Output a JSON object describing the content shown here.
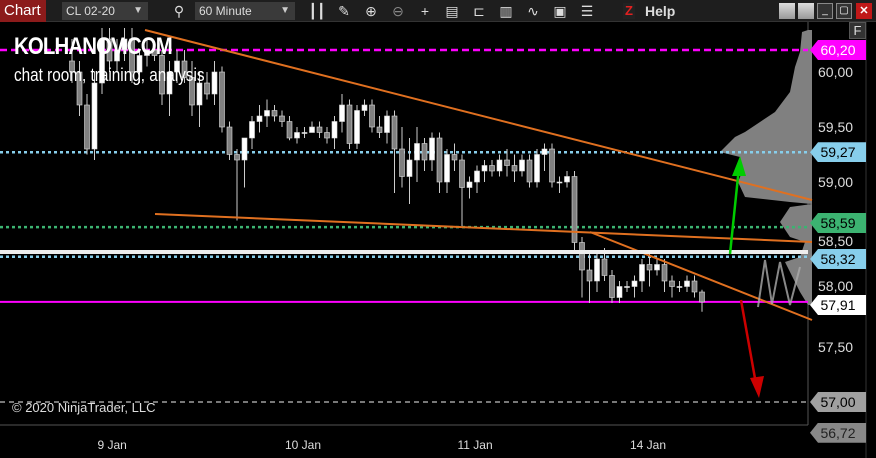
{
  "toolbar": {
    "chart_tab": "Chart",
    "instrument": "CL 02-20",
    "timeframe": "60 Minute",
    "icons": [
      "search-icon",
      "bar-type-icon",
      "draw-pencil-icon",
      "zoom-in-icon",
      "zoom-out-icon",
      "crosshair-icon",
      "data-box-icon",
      "chart-trader-icon",
      "templates-icon",
      "strategies-icon",
      "properties-icon",
      "indicators-list-icon"
    ],
    "z_label": "Z",
    "help": "Help"
  },
  "watermark": {
    "title": "KOLHANOV.COM",
    "subtitle": "chat room, training, analysis"
  },
  "copyright": "© 2020 NinjaTrader, LLC",
  "f_button": "F",
  "chart_data": {
    "type": "candlestick",
    "instrument": "CL 02-20",
    "interval": "60 Minute",
    "ylim": [
      56.72,
      60.4
    ],
    "y_ticks": [
      "60,00",
      "59,50",
      "59,00",
      "58,50",
      "58,00",
      "57,50"
    ],
    "y_tick_values": [
      60.0,
      59.5,
      59.0,
      58.5,
      58.0,
      57.5
    ],
    "x_tick_labels": [
      "9 Jan",
      "10 Jan",
      "11 Jan",
      "14 Jan"
    ],
    "x_tick_index": [
      5,
      30,
      53,
      76
    ],
    "ohlc": [
      [
        60.1,
        60.3,
        59.9,
        60.0
      ],
      [
        60.0,
        60.1,
        59.6,
        59.7
      ],
      [
        59.7,
        59.8,
        59.25,
        59.3
      ],
      [
        59.3,
        60.0,
        59.2,
        59.9
      ],
      [
        59.9,
        60.4,
        59.8,
        60.3
      ],
      [
        60.3,
        60.4,
        60.0,
        60.1
      ],
      [
        60.1,
        60.3,
        60.0,
        60.2
      ],
      [
        60.2,
        60.4,
        60.1,
        60.3
      ],
      [
        60.3,
        60.4,
        59.9,
        60.0
      ],
      [
        60.0,
        60.2,
        59.9,
        60.15
      ],
      [
        60.15,
        60.3,
        60.05,
        60.2
      ],
      [
        60.2,
        60.25,
        60.1,
        60.15
      ],
      [
        60.15,
        60.2,
        59.7,
        59.8
      ],
      [
        59.8,
        60.1,
        59.6,
        60.0
      ],
      [
        60.0,
        60.2,
        59.9,
        60.1
      ],
      [
        60.1,
        60.2,
        59.9,
        59.95
      ],
      [
        59.95,
        60.1,
        59.6,
        59.7
      ],
      [
        59.7,
        60.0,
        59.5,
        59.9
      ],
      [
        59.9,
        60.0,
        59.75,
        59.8
      ],
      [
        59.8,
        60.1,
        59.7,
        60.0
      ],
      [
        60.0,
        60.05,
        59.45,
        59.5
      ],
      [
        59.5,
        59.55,
        59.2,
        59.25
      ],
      [
        59.25,
        59.3,
        58.65,
        59.2
      ],
      [
        59.2,
        59.4,
        58.95,
        59.4
      ],
      [
        59.4,
        59.6,
        59.3,
        59.55
      ],
      [
        59.55,
        59.7,
        59.45,
        59.6
      ],
      [
        59.6,
        59.75,
        59.5,
        59.65
      ],
      [
        59.65,
        59.7,
        59.55,
        59.6
      ],
      [
        59.6,
        59.65,
        59.5,
        59.55
      ],
      [
        59.55,
        59.6,
        59.38,
        59.4
      ],
      [
        59.4,
        59.5,
        59.35,
        59.45
      ],
      [
        59.45,
        59.5,
        59.4,
        59.45
      ],
      [
        59.45,
        59.55,
        59.45,
        59.5
      ],
      [
        59.5,
        59.55,
        59.4,
        59.45
      ],
      [
        59.45,
        59.5,
        59.35,
        59.4
      ],
      [
        59.4,
        59.6,
        59.3,
        59.55
      ],
      [
        59.55,
        59.8,
        59.45,
        59.7
      ],
      [
        59.7,
        59.75,
        59.3,
        59.35
      ],
      [
        59.35,
        59.7,
        59.3,
        59.65
      ],
      [
        59.65,
        59.75,
        59.6,
        59.7
      ],
      [
        59.7,
        59.75,
        59.45,
        59.5
      ],
      [
        59.5,
        59.6,
        59.4,
        59.45
      ],
      [
        59.45,
        59.65,
        59.35,
        59.6
      ],
      [
        59.6,
        59.65,
        58.9,
        59.3
      ],
      [
        59.3,
        59.5,
        58.95,
        59.05
      ],
      [
        59.05,
        59.4,
        58.8,
        59.2
      ],
      [
        59.2,
        59.5,
        59.0,
        59.35
      ],
      [
        59.35,
        59.4,
        59.1,
        59.2
      ],
      [
        59.2,
        59.45,
        59.1,
        59.4
      ],
      [
        59.4,
        59.45,
        58.9,
        59.0
      ],
      [
        59.0,
        59.3,
        58.9,
        59.25
      ],
      [
        59.25,
        59.35,
        59.1,
        59.2
      ],
      [
        59.2,
        59.25,
        58.6,
        58.95
      ],
      [
        58.95,
        59.05,
        58.85,
        59.0
      ],
      [
        59.0,
        59.15,
        58.9,
        59.1
      ],
      [
        59.1,
        59.2,
        59.0,
        59.15
      ],
      [
        59.15,
        59.2,
        59.05,
        59.1
      ],
      [
        59.1,
        59.25,
        59.05,
        59.2
      ],
      [
        59.2,
        59.3,
        59.05,
        59.15
      ],
      [
        59.15,
        59.25,
        59.0,
        59.1
      ],
      [
        59.1,
        59.25,
        59.05,
        59.2
      ],
      [
        59.2,
        59.25,
        58.95,
        59.0
      ],
      [
        59.0,
        59.3,
        58.95,
        59.25
      ],
      [
        59.25,
        59.35,
        59.1,
        59.3
      ],
      [
        59.3,
        59.35,
        58.95,
        59.0
      ],
      [
        59.0,
        59.05,
        58.9,
        59.0
      ],
      [
        59.0,
        59.1,
        58.95,
        59.05
      ],
      [
        59.05,
        59.1,
        58.35,
        58.45
      ],
      [
        58.45,
        58.5,
        57.95,
        58.2
      ],
      [
        58.2,
        58.35,
        57.9,
        58.1
      ],
      [
        58.1,
        58.35,
        58.0,
        58.3
      ],
      [
        58.3,
        58.4,
        58.1,
        58.15
      ],
      [
        58.15,
        58.2,
        57.9,
        57.95
      ],
      [
        57.95,
        58.1,
        57.9,
        58.05
      ],
      [
        58.05,
        58.1,
        58.0,
        58.05
      ],
      [
        58.05,
        58.15,
        57.95,
        58.1
      ],
      [
        58.1,
        58.3,
        58.0,
        58.25
      ],
      [
        58.25,
        58.35,
        58.05,
        58.2
      ],
      [
        58.2,
        58.3,
        58.15,
        58.25
      ],
      [
        58.25,
        58.3,
        58.0,
        58.1
      ],
      [
        58.1,
        58.15,
        57.95,
        58.05
      ],
      [
        58.05,
        58.1,
        58.0,
        58.05
      ],
      [
        58.05,
        58.15,
        58.0,
        58.1
      ],
      [
        58.1,
        58.15,
        57.95,
        58.0
      ],
      [
        58.0,
        58.02,
        57.82,
        57.91
      ]
    ],
    "levels": [
      {
        "price": 60.2,
        "label": "60,20",
        "color": "#ff00ff",
        "style": "dashed"
      },
      {
        "price": 59.27,
        "label": "59,27",
        "color": "#87ceeb",
        "style": "dotted"
      },
      {
        "price": 58.59,
        "label": "58,59",
        "color": "#3cb371",
        "style": "dotted"
      },
      {
        "price": 58.32,
        "label": "58,32",
        "color": "#87ceeb",
        "style": "dotted"
      },
      {
        "price": 57.91,
        "label": "57,91",
        "color": "#ff00ff",
        "style": "solid"
      },
      {
        "price": 57.0,
        "label": "57,00",
        "color": "#a0a0a0",
        "style": "dashed"
      }
    ],
    "bottom_label": "56,72",
    "colors": {
      "up": "#ffffff",
      "down": "#808080",
      "trendline": "#e07020",
      "up_arrow": "#00cc00",
      "down_arrow": "#cc0000",
      "profile": "#808080"
    }
  }
}
